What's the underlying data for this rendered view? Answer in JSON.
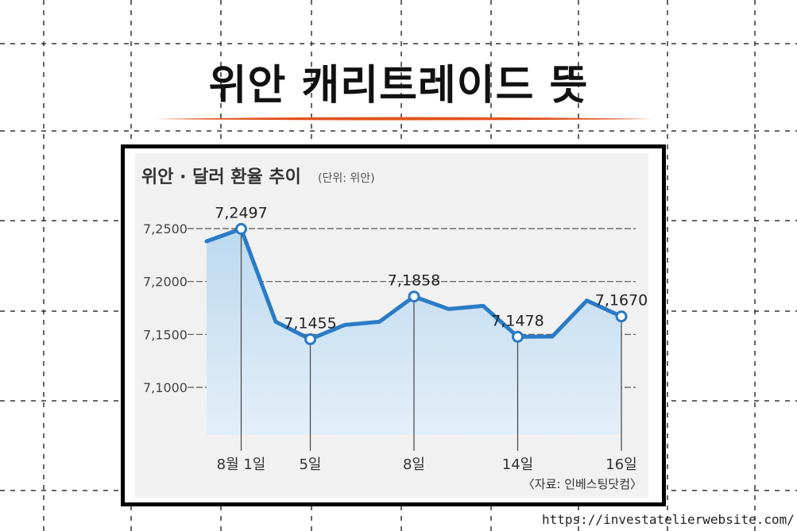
{
  "title": "위안 캐리트레이드 뜻",
  "url_watermark": "https://investatelierwebsite.com/",
  "colors": {
    "accent_line": "#e2531f",
    "series_line": "#2a7bc4",
    "area_top": "#bcd9f0",
    "area_bottom": "#e3eff8",
    "panel_bg": "#f1f1f1"
  },
  "chart_data": {
    "type": "area",
    "title": "위안 · 달러 환율 추이",
    "unit": "(단위: 위안)",
    "source": "〈자료: 인베스팅닷컴〉",
    "ylim": [
      7.05,
      7.27
    ],
    "y_ticks": [
      {
        "value": 7.25,
        "label": "7,2500"
      },
      {
        "value": 7.2,
        "label": "7,2000"
      },
      {
        "value": 7.15,
        "label": "7,1500"
      },
      {
        "value": 7.1,
        "label": "7,1000"
      }
    ],
    "x_ticks": [
      {
        "day": 1,
        "label": "8월 1일"
      },
      {
        "day": 5,
        "label": "5일"
      },
      {
        "day": 8,
        "label": "8일"
      },
      {
        "day": 14,
        "label": "14일"
      },
      {
        "day": 16,
        "label": "16일"
      }
    ],
    "series": [
      {
        "points": [
          {
            "x": 0,
            "y": 7.238
          },
          {
            "x": 1,
            "y": 7.2497
          },
          {
            "x": 2,
            "y": 7.162
          },
          {
            "x": 3,
            "y": 7.1455
          },
          {
            "x": 4,
            "y": 7.159
          },
          {
            "x": 5,
            "y": 7.162
          },
          {
            "x": 6,
            "y": 7.1858
          },
          {
            "x": 7,
            "y": 7.174
          },
          {
            "x": 8,
            "y": 7.177
          },
          {
            "x": 9,
            "y": 7.1478
          },
          {
            "x": 10,
            "y": 7.148
          },
          {
            "x": 11,
            "y": 7.182
          },
          {
            "x": 12,
            "y": 7.167
          }
        ],
        "labeled": [
          {
            "index": 1,
            "label": "7,2497"
          },
          {
            "index": 3,
            "label": "7,1455"
          },
          {
            "index": 6,
            "label": "7,1858"
          },
          {
            "index": 9,
            "label": "7,1478"
          },
          {
            "index": 12,
            "label": "7,1670"
          }
        ]
      }
    ],
    "grid": true
  }
}
